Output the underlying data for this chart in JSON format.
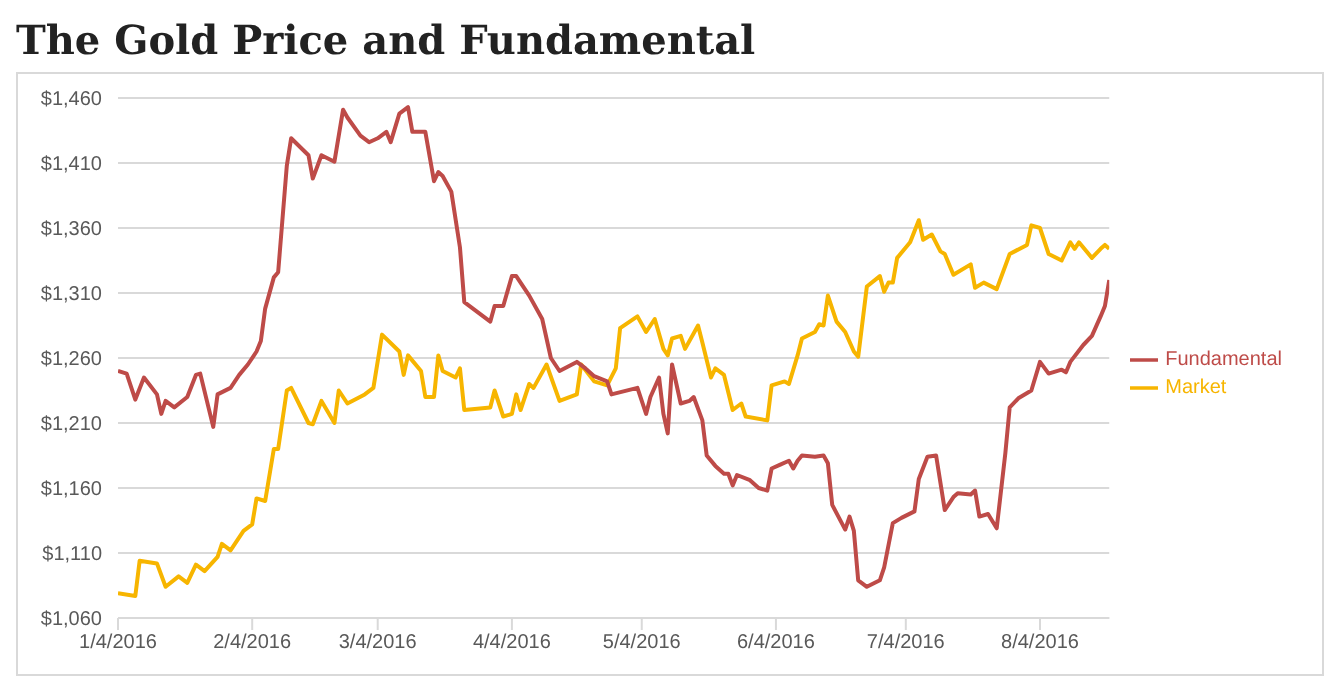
{
  "chart_data": {
    "type": "line",
    "title": "The Gold Price and Fundamental",
    "xlim": [
      "2016-01-04",
      "2016-08-20"
    ],
    "xticks": [
      {
        "value": "2016-01-04",
        "label": "1/4/2016"
      },
      {
        "value": "2016-02-04",
        "label": "2/4/2016"
      },
      {
        "value": "2016-03-04",
        "label": "3/4/2016"
      },
      {
        "value": "2016-04-04",
        "label": "4/4/2016"
      },
      {
        "value": "2016-05-04",
        "label": "5/4/2016"
      },
      {
        "value": "2016-06-04",
        "label": "6/4/2016"
      },
      {
        "value": "2016-07-04",
        "label": "7/4/2016"
      },
      {
        "value": "2016-08-04",
        "label": "8/4/2016"
      }
    ],
    "ylim": [
      1060,
      1460
    ],
    "yticks": [
      {
        "value": 1060,
        "label": "$1,060"
      },
      {
        "value": 1110,
        "label": "$1,110"
      },
      {
        "value": 1160,
        "label": "$1,160"
      },
      {
        "value": 1210,
        "label": "$1,210"
      },
      {
        "value": 1260,
        "label": "$1,260"
      },
      {
        "value": 1310,
        "label": "$1,310"
      },
      {
        "value": 1360,
        "label": "$1,360"
      },
      {
        "value": 1410,
        "label": "$1,410"
      },
      {
        "value": 1460,
        "label": "$1,460"
      }
    ],
    "grid": "y",
    "legend": "right",
    "marker": "none",
    "line_style": "solid",
    "series": [
      {
        "name": "Market",
        "color": "#f7b500",
        "x": [
          "2016-01-04",
          "2016-01-08",
          "2016-01-09",
          "2016-01-13",
          "2016-01-15",
          "2016-01-18",
          "2016-01-20",
          "2016-01-22",
          "2016-01-24",
          "2016-01-27",
          "2016-01-28",
          "2016-01-30",
          "2016-02-02",
          "2016-02-04",
          "2016-02-05",
          "2016-02-07",
          "2016-02-09",
          "2016-02-10",
          "2016-02-12",
          "2016-02-13",
          "2016-02-17",
          "2016-02-18",
          "2016-02-20",
          "2016-02-23",
          "2016-02-24",
          "2016-02-26",
          "2016-03-01",
          "2016-03-03",
          "2016-03-05",
          "2016-03-09",
          "2016-03-10",
          "2016-03-11",
          "2016-03-14",
          "2016-03-15",
          "2016-03-17",
          "2016-03-18",
          "2016-03-19",
          "2016-03-22",
          "2016-03-23",
          "2016-03-24",
          "2016-03-30",
          "2016-03-31",
          "2016-04-02",
          "2016-04-04",
          "2016-04-05",
          "2016-04-06",
          "2016-04-08",
          "2016-04-09",
          "2016-04-12",
          "2016-04-15",
          "2016-04-19",
          "2016-04-20",
          "2016-04-23",
          "2016-04-26",
          "2016-04-28",
          "2016-04-29",
          "2016-05-03",
          "2016-05-05",
          "2016-05-07",
          "2016-05-09",
          "2016-05-10",
          "2016-05-11",
          "2016-05-13",
          "2016-05-14",
          "2016-05-17",
          "2016-05-18",
          "2016-05-20",
          "2016-05-21",
          "2016-05-23",
          "2016-05-25",
          "2016-05-27",
          "2016-05-28",
          "2016-06-02",
          "2016-06-03",
          "2016-06-06",
          "2016-06-07",
          "2016-06-09",
          "2016-06-10",
          "2016-06-13",
          "2016-06-14",
          "2016-06-15",
          "2016-06-16",
          "2016-06-18",
          "2016-06-20",
          "2016-06-22",
          "2016-06-23",
          "2016-06-25",
          "2016-06-28",
          "2016-06-29",
          "2016-06-30",
          "2016-07-01",
          "2016-07-02",
          "2016-07-05",
          "2016-07-07",
          "2016-07-08",
          "2016-07-10",
          "2016-07-12",
          "2016-07-13",
          "2016-07-15",
          "2016-07-19",
          "2016-07-20",
          "2016-07-22",
          "2016-07-25",
          "2016-07-28",
          "2016-08-01",
          "2016-08-02",
          "2016-08-04",
          "2016-08-06",
          "2016-08-09",
          "2016-08-11",
          "2016-08-12",
          "2016-08-13",
          "2016-08-16",
          "2016-08-18",
          "2016-08-19",
          "2016-08-20"
        ],
        "values": [
          1079,
          1077,
          1104,
          1102,
          1084,
          1092,
          1087,
          1101,
          1096,
          1107,
          1117,
          1112,
          1127,
          1132,
          1152,
          1150,
          1190,
          1190,
          1235,
          1237,
          1210,
          1209,
          1227,
          1210,
          1235,
          1225,
          1232,
          1237,
          1278,
          1265,
          1247,
          1262,
          1250,
          1230,
          1230,
          1262,
          1250,
          1245,
          1252,
          1220,
          1222,
          1235,
          1215,
          1217,
          1232,
          1220,
          1240,
          1237,
          1255,
          1227,
          1232,
          1255,
          1242,
          1239,
          1252,
          1283,
          1292,
          1280,
          1290,
          1267,
          1262,
          1275,
          1277,
          1267,
          1285,
          1272,
          1245,
          1252,
          1247,
          1220,
          1225,
          1215,
          1212,
          1239,
          1242,
          1240,
          1262,
          1275,
          1280,
          1286,
          1285,
          1308,
          1288,
          1280,
          1265,
          1261,
          1315,
          1323,
          1311,
          1318,
          1318,
          1337,
          1349,
          1366,
          1351,
          1355,
          1342,
          1340,
          1324,
          1332,
          1314,
          1318,
          1313,
          1340,
          1347,
          1362,
          1360,
          1340,
          1335,
          1349,
          1344,
          1349,
          1337,
          1344,
          1347,
          1344
        ]
      },
      {
        "name": "Fundamental",
        "color": "#be4b48",
        "x": [
          "2016-01-04",
          "2016-01-06",
          "2016-01-08",
          "2016-01-10",
          "2016-01-13",
          "2016-01-14",
          "2016-01-15",
          "2016-01-17",
          "2016-01-20",
          "2016-01-22",
          "2016-01-23",
          "2016-01-26",
          "2016-01-27",
          "2016-01-30",
          "2016-02-01",
          "2016-02-03",
          "2016-02-05",
          "2016-02-06",
          "2016-02-07",
          "2016-02-09",
          "2016-02-10",
          "2016-02-12",
          "2016-02-13",
          "2016-02-17",
          "2016-02-18",
          "2016-02-20",
          "2016-02-23",
          "2016-02-25",
          "2016-02-26",
          "2016-02-29",
          "2016-03-02",
          "2016-03-04",
          "2016-03-06",
          "2016-03-07",
          "2016-03-09",
          "2016-03-11",
          "2016-03-12",
          "2016-03-15",
          "2016-03-17",
          "2016-03-18",
          "2016-03-19",
          "2016-03-21",
          "2016-03-23",
          "2016-03-24",
          "2016-03-30",
          "2016-03-31",
          "2016-04-02",
          "2016-04-04",
          "2016-04-05",
          "2016-04-07",
          "2016-04-08",
          "2016-04-11",
          "2016-04-13",
          "2016-04-15",
          "2016-04-19",
          "2016-04-21",
          "2016-04-23",
          "2016-04-26",
          "2016-04-27",
          "2016-05-03",
          "2016-05-05",
          "2016-05-06",
          "2016-05-08",
          "2016-05-09",
          "2016-05-10",
          "2016-05-11",
          "2016-05-13",
          "2016-05-15",
          "2016-05-16",
          "2016-05-18",
          "2016-05-19",
          "2016-05-21",
          "2016-05-23",
          "2016-05-24",
          "2016-05-25",
          "2016-05-26",
          "2016-05-29",
          "2016-05-31",
          "2016-06-02",
          "2016-06-03",
          "2016-06-05",
          "2016-06-07",
          "2016-06-08",
          "2016-06-09",
          "2016-06-10",
          "2016-06-13",
          "2016-06-15",
          "2016-06-16",
          "2016-06-17",
          "2016-06-20",
          "2016-06-21",
          "2016-06-22",
          "2016-06-23",
          "2016-06-25",
          "2016-06-28",
          "2016-06-29",
          "2016-07-01",
          "2016-07-03",
          "2016-07-06",
          "2016-07-07",
          "2016-07-09",
          "2016-07-11",
          "2016-07-13",
          "2016-07-15",
          "2016-07-16",
          "2016-07-19",
          "2016-07-20",
          "2016-07-21",
          "2016-07-23",
          "2016-07-25",
          "2016-07-27",
          "2016-07-28",
          "2016-07-30",
          "2016-08-02",
          "2016-08-04",
          "2016-08-06",
          "2016-08-09",
          "2016-08-10",
          "2016-08-11",
          "2016-08-14",
          "2016-08-16",
          "2016-08-18",
          "2016-08-19",
          "2016-08-20"
        ],
        "values": [
          1250,
          1248,
          1228,
          1245,
          1232,
          1217,
          1227,
          1222,
          1230,
          1247,
          1248,
          1207,
          1232,
          1237,
          1247,
          1255,
          1265,
          1273,
          1298,
          1322,
          1326,
          1408,
          1429,
          1416,
          1398,
          1416,
          1411,
          1451,
          1445,
          1431,
          1426,
          1429,
          1434,
          1426,
          1448,
          1453,
          1434,
          1434,
          1396,
          1403,
          1400,
          1388,
          1345,
          1303,
          1288,
          1300,
          1300,
          1323,
          1323,
          1313,
          1308,
          1290,
          1260,
          1250,
          1257,
          1252,
          1246,
          1242,
          1232,
          1237,
          1217,
          1230,
          1245,
          1217,
          1202,
          1255,
          1225,
          1227,
          1230,
          1212,
          1185,
          1177,
          1171,
          1171,
          1162,
          1170,
          1166,
          1160,
          1158,
          1175,
          1178,
          1181,
          1175,
          1181,
          1185,
          1184,
          1185,
          1179,
          1147,
          1128,
          1138,
          1127,
          1089,
          1084,
          1089,
          1099,
          1133,
          1137,
          1142,
          1167,
          1184,
          1185,
          1143,
          1153,
          1156,
          1155,
          1158,
          1138,
          1140,
          1129,
          1187,
          1222,
          1229,
          1235,
          1257,
          1248,
          1251,
          1249,
          1257,
          1270,
          1277,
          1292,
          1300,
          1320
        ]
      }
    ]
  }
}
